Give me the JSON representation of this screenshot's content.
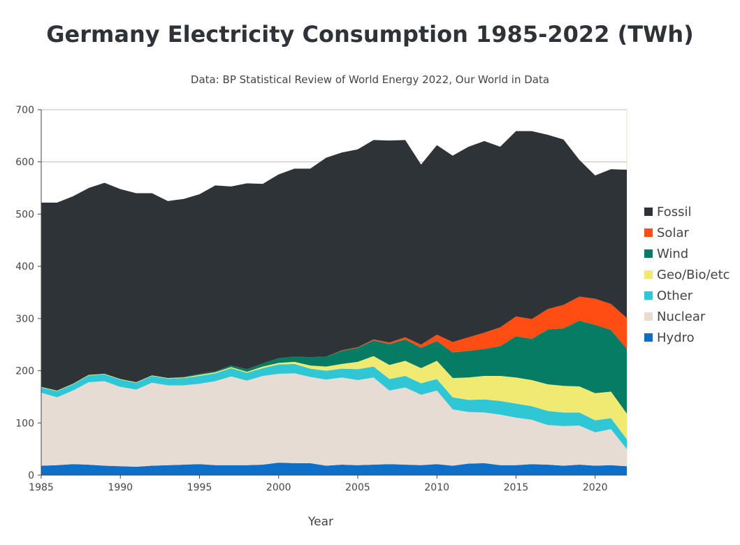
{
  "chart_data": {
    "type": "area",
    "title": "Germany Electricity Consumption 1985-2022 (TWh)",
    "subtitle": "Data: BP Statistical Review of World Energy 2022, Our World in Data",
    "xlabel": "Year",
    "ylabel": "",
    "xlim": [
      1985,
      2022
    ],
    "ylim": [
      0,
      700
    ],
    "x_ticks": [
      1985,
      1990,
      1995,
      2000,
      2005,
      2010,
      2015,
      2020
    ],
    "y_ticks": [
      0,
      100,
      200,
      300,
      400,
      500,
      600,
      700
    ],
    "legend_position": "right",
    "stacked": true,
    "x": [
      1985,
      1986,
      1987,
      1988,
      1989,
      1990,
      1991,
      1992,
      1993,
      1994,
      1995,
      1996,
      1997,
      1998,
      1999,
      2000,
      2001,
      2002,
      2003,
      2004,
      2005,
      2006,
      2007,
      2008,
      2009,
      2010,
      2011,
      2012,
      2013,
      2014,
      2015,
      2016,
      2017,
      2018,
      2019,
      2020,
      2021,
      2022
    ],
    "series": [
      {
        "name": "Hydro",
        "color": "#0f6fc6",
        "values": [
          18,
          19,
          21,
          20,
          18,
          17,
          16,
          18,
          19,
          20,
          21,
          19,
          19,
          19,
          20,
          24,
          23,
          23,
          18,
          20,
          19,
          20,
          21,
          20,
          19,
          21,
          18,
          22,
          23,
          19,
          19,
          21,
          20,
          18,
          20,
          18,
          19,
          17
        ]
      },
      {
        "name": "Nuclear",
        "color": "#e6dcd3",
        "values": [
          140,
          130,
          141,
          158,
          162,
          152,
          148,
          159,
          153,
          152,
          154,
          161,
          170,
          162,
          170,
          170,
          172,
          165,
          165,
          167,
          163,
          167,
          141,
          148,
          135,
          141,
          108,
          99,
          97,
          97,
          91,
          85,
          76,
          76,
          75,
          64,
          69,
          33
        ]
      },
      {
        "name": "Other",
        "color": "#2fc6d6",
        "values": [
          10,
          12,
          12,
          13,
          13,
          14,
          13,
          13,
          13,
          14,
          15,
          15,
          16,
          15,
          15,
          18,
          18,
          16,
          17,
          17,
          21,
          21,
          22,
          22,
          22,
          22,
          23,
          23,
          25,
          26,
          27,
          26,
          27,
          26,
          25,
          23,
          21,
          19
        ]
      },
      {
        "name": "Geo/Bio/etc",
        "color": "#f1ea72",
        "values": [
          1,
          1,
          1,
          1,
          1,
          1,
          1,
          1,
          1,
          1,
          2,
          2,
          2,
          2,
          3,
          3,
          4,
          6,
          8,
          9,
          14,
          20,
          27,
          29,
          29,
          35,
          37,
          43,
          45,
          48,
          50,
          50,
          51,
          51,
          50,
          52,
          51,
          49
        ]
      },
      {
        "name": "Wind",
        "color": "#067c64",
        "values": [
          0,
          0,
          0,
          0,
          0,
          0,
          0,
          0,
          0,
          1,
          2,
          2,
          3,
          5,
          6,
          9,
          10,
          16,
          19,
          25,
          27,
          30,
          40,
          41,
          39,
          38,
          49,
          51,
          52,
          57,
          79,
          79,
          105,
          110,
          126,
          131,
          118,
          124
        ]
      },
      {
        "name": "Solar",
        "color": "#ff4d14",
        "values": [
          0,
          0,
          0,
          0,
          0,
          0,
          0,
          0,
          0,
          0,
          0,
          0,
          0,
          0,
          0,
          0,
          0,
          0,
          0,
          1,
          1,
          2,
          3,
          4,
          6,
          12,
          20,
          26,
          31,
          36,
          38,
          38,
          39,
          45,
          46,
          50,
          50,
          59
        ]
      },
      {
        "name": "Fossil",
        "color": "#2e3338",
        "values": [
          353,
          360,
          359,
          358,
          366,
          364,
          362,
          349,
          339,
          341,
          344,
          356,
          343,
          356,
          344,
          352,
          360,
          361,
          381,
          379,
          379,
          382,
          387,
          378,
          345,
          363,
          357,
          365,
          367,
          346,
          355,
          360,
          334,
          317,
          262,
          236,
          258,
          284
        ]
      }
    ]
  }
}
